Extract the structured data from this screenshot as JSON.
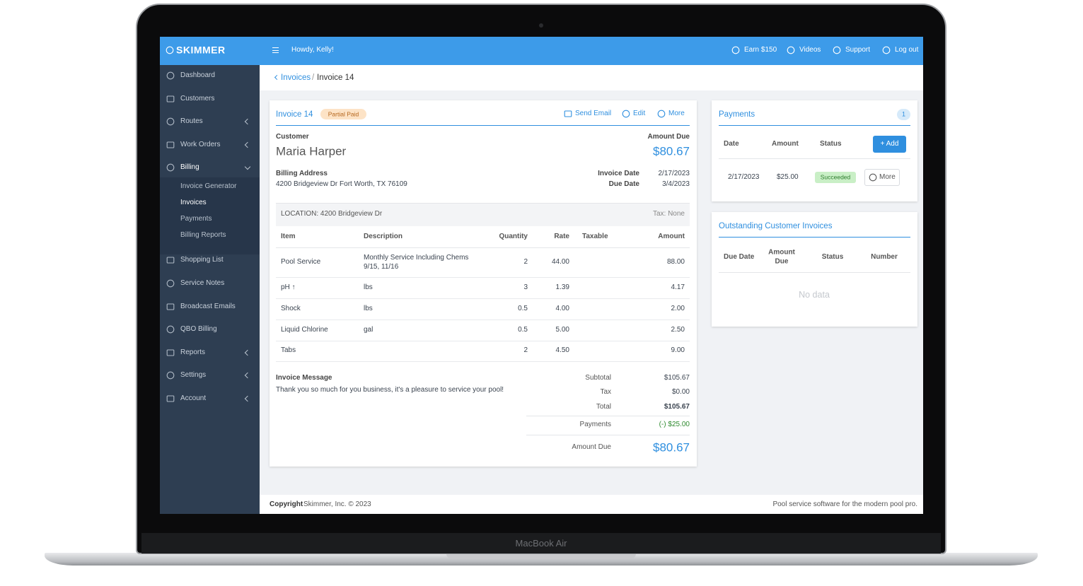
{
  "device_label": "MacBook Air",
  "brand": "SKIMMER",
  "topbar": {
    "greeting": "Howdy, Kelly!",
    "links": [
      "Earn $150",
      "Videos",
      "Support",
      "Log out"
    ]
  },
  "sidebar": {
    "items": [
      {
        "label": "Dashboard"
      },
      {
        "label": "Customers"
      },
      {
        "label": "Routes",
        "has_submenu": true
      },
      {
        "label": "Work Orders",
        "has_submenu": true
      },
      {
        "label": "Billing",
        "expanded": true,
        "submenu": [
          "Invoice Generator",
          "Invoices",
          "Payments",
          "Billing Reports"
        ],
        "active_sub": 1
      },
      {
        "label": "Shopping List"
      },
      {
        "label": "Service Notes"
      },
      {
        "label": "Broadcast Emails"
      },
      {
        "label": "QBO Billing"
      },
      {
        "label": "Reports",
        "has_submenu": true
      },
      {
        "label": "Settings",
        "has_submenu": true
      },
      {
        "label": "Account",
        "has_submenu": true
      }
    ]
  },
  "breadcrumb": {
    "parent": "Invoices",
    "separator": "/",
    "current": "Invoice 14"
  },
  "invoice": {
    "title": "Invoice 14",
    "status": "Partial Paid",
    "actions": [
      "Send Email",
      "Edit",
      "More"
    ],
    "customer_label": "Customer",
    "customer_name": "Maria Harper",
    "amount_due_label": "Amount Due",
    "amount_due": "$80.67",
    "billing_address_label": "Billing Address",
    "billing_address": "4200 Bridgeview Dr Fort Worth, TX 76109",
    "invoice_date_label": "Invoice Date",
    "invoice_date": "2/17/2023",
    "due_date_label": "Due Date",
    "due_date": "3/4/2023",
    "location": "LOCATION: 4200 Bridgeview Dr",
    "tax_note": "Tax: None",
    "table": {
      "headers": [
        "Item",
        "Description",
        "Quantity",
        "Rate",
        "Taxable",
        "Amount"
      ],
      "rows": [
        {
          "item": "Pool Service",
          "description": [
            "Monthly Service Including Chems",
            "9/15, 11/16"
          ],
          "quantity": "2",
          "rate": "44.00",
          "amount": "88.00"
        },
        {
          "item": "pH ↑",
          "description": [
            "lbs"
          ],
          "quantity": "3",
          "rate": "1.39",
          "amount": "4.17"
        },
        {
          "item": "Shock",
          "description": [
            "lbs"
          ],
          "quantity": "0.5",
          "rate": "4.00",
          "amount": "2.00"
        },
        {
          "item": "Liquid Chlorine",
          "description": [
            "gal"
          ],
          "quantity": "0.5",
          "rate": "5.00",
          "amount": "2.50"
        },
        {
          "item": "Tabs",
          "quantity": "2",
          "rate": "4.50",
          "amount": "9.00"
        }
      ]
    },
    "message_label": "Invoice Message",
    "message": "Thank you so much for you business, it's a pleasure to service your pool!",
    "totals": [
      {
        "label": "Subtotal",
        "value": "$105.67"
      },
      {
        "label": "Tax",
        "value": "$0.00"
      },
      {
        "label": "Total",
        "value": "$105.67"
      },
      {
        "label": "Payments",
        "value": "(-) $25.00"
      },
      {
        "label": "Amount Due",
        "value": "$80.67"
      }
    ]
  },
  "payments": {
    "title": "Payments",
    "count": "1",
    "headers": [
      "Date",
      "Amount",
      "Status"
    ],
    "add_button": "+ Add",
    "rows": [
      {
        "date": "2/17/2023",
        "amount": "$25.00",
        "status": "Succeeded",
        "action": "More"
      }
    ]
  },
  "outstanding": {
    "title": "Outstanding Customer Invoices",
    "headers": [
      "Due Date",
      "Amount Due",
      "Status",
      "Number"
    ],
    "empty": "No data"
  },
  "footer": {
    "copyright_label": "Copyright",
    "copyright": "Skimmer, Inc. © 2023",
    "tagline": "Pool service software for the modern pool pro."
  }
}
